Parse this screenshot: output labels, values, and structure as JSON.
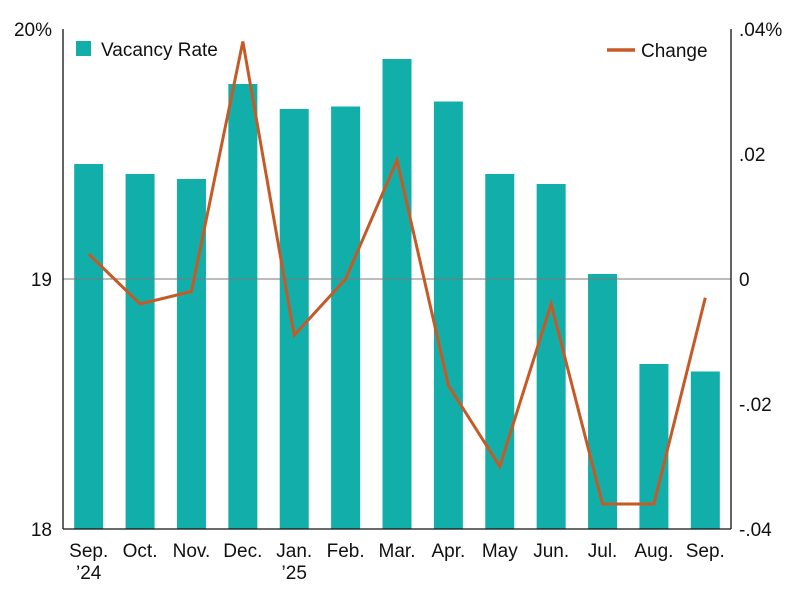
{
  "chart_data": {
    "type": "bar",
    "categories": [
      [
        "Sep.",
        "’24"
      ],
      [
        "Oct."
      ],
      [
        "Nov."
      ],
      [
        "Dec."
      ],
      [
        "Jan.",
        "’25"
      ],
      [
        "Feb."
      ],
      [
        "Mar."
      ],
      [
        "Apr."
      ],
      [
        "May"
      ],
      [
        "Jun."
      ],
      [
        "Jul."
      ],
      [
        "Aug."
      ],
      [
        "Sep."
      ]
    ],
    "series": [
      {
        "name": "Vacancy Rate",
        "type": "bar",
        "axis": "left",
        "color": "#12AFAA",
        "values": [
          19.46,
          19.42,
          19.4,
          19.78,
          19.68,
          19.69,
          19.88,
          19.71,
          19.42,
          19.38,
          19.02,
          18.66,
          18.63
        ]
      },
      {
        "name": "Change",
        "type": "line",
        "axis": "right",
        "color": "#C65A26",
        "values": [
          0.004,
          -0.004,
          -0.002,
          0.038,
          -0.009,
          0.0,
          0.019,
          -0.017,
          -0.03,
          -0.004,
          -0.036,
          -0.036,
          -0.003
        ]
      }
    ],
    "y_left": {
      "ylim": [
        18,
        20
      ],
      "ticks": [
        {
          "value": 20,
          "label": "20%"
        },
        {
          "value": 19,
          "label": "19"
        },
        {
          "value": 18,
          "label": "18"
        }
      ]
    },
    "y_right": {
      "ylim": [
        -0.04,
        0.04
      ],
      "ticks": [
        {
          "value": 0.04,
          "label": ".04%"
        },
        {
          "value": 0.02,
          "label": ".02"
        },
        {
          "value": 0,
          "label": "0"
        },
        {
          "value": -0.02,
          "label": "-.02"
        },
        {
          "value": -0.04,
          "label": "-.04"
        }
      ]
    },
    "reference_line": 19,
    "legend": {
      "bar_entry": {
        "label": "Vacancy Rate",
        "placement": "top-left"
      },
      "line_entry": {
        "label": "Change",
        "placement": "top-right"
      }
    },
    "grid": false
  }
}
